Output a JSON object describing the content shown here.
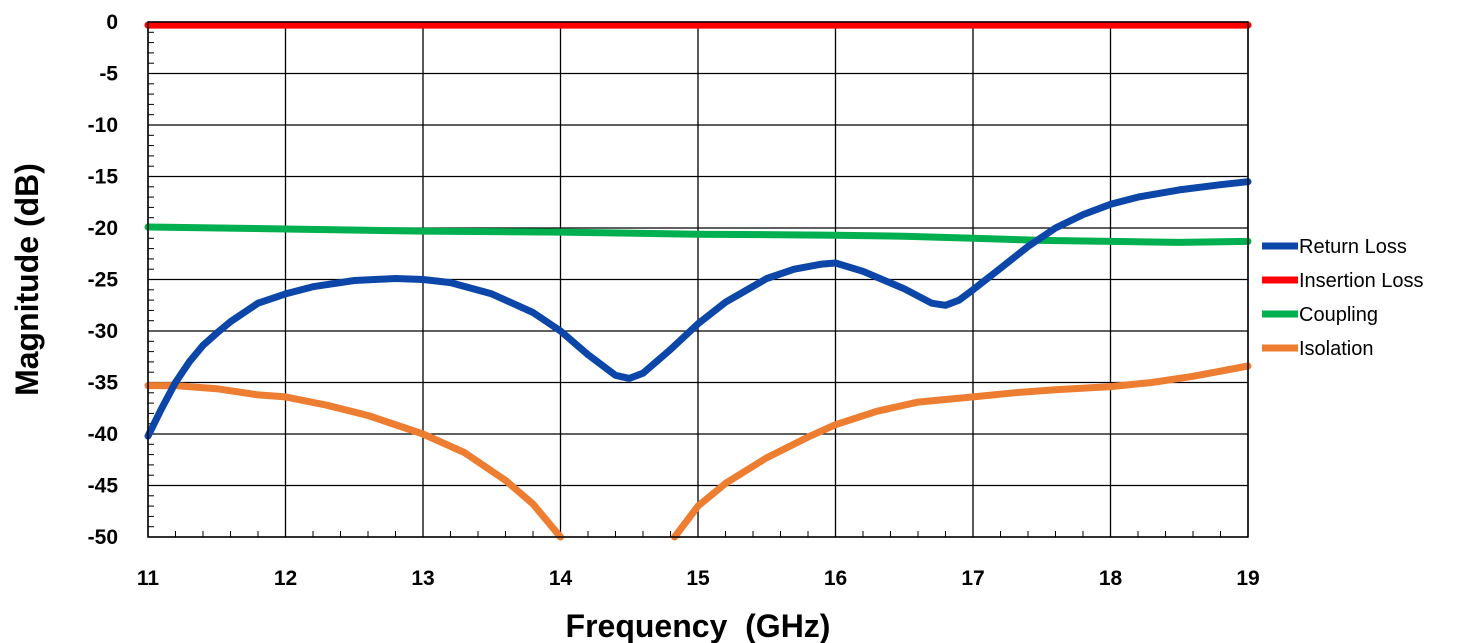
{
  "chart_data": {
    "type": "line",
    "title": "",
    "xlabel": "Frequency  (GHz)",
    "ylabel": "Magnitude (dB)",
    "xlim": [
      11,
      19
    ],
    "ylim": [
      -50,
      0
    ],
    "x_ticks": [
      11,
      12,
      13,
      14,
      15,
      16,
      17,
      18,
      19
    ],
    "y_ticks": [
      0,
      -5,
      -10,
      -15,
      -20,
      -25,
      -30,
      -35,
      -40,
      -45,
      -50
    ],
    "grid": true,
    "legend_position": "right",
    "series": [
      {
        "name": "Return Loss",
        "color": "#0b46a8",
        "x": [
          11,
          11.1,
          11.2,
          11.3,
          11.4,
          11.5,
          11.6,
          11.8,
          12,
          12.2,
          12.5,
          12.8,
          13,
          13.2,
          13.5,
          13.8,
          14,
          14.2,
          14.4,
          14.5,
          14.6,
          14.8,
          15,
          15.2,
          15.5,
          15.7,
          15.9,
          16,
          16.2,
          16.5,
          16.7,
          16.8,
          16.9,
          17,
          17.2,
          17.4,
          17.6,
          17.8,
          18,
          18.2,
          18.5,
          18.8,
          19
        ],
        "y": [
          -40.2,
          -37.5,
          -35,
          -33,
          -31.4,
          -30.2,
          -29.1,
          -27.3,
          -26.4,
          -25.7,
          -25.1,
          -24.9,
          -25.0,
          -25.3,
          -26.4,
          -28.2,
          -30.0,
          -32.3,
          -34.3,
          -34.6,
          -34.1,
          -31.8,
          -29.3,
          -27.2,
          -24.9,
          -24.0,
          -23.5,
          -23.4,
          -24.2,
          -25.9,
          -27.3,
          -27.5,
          -27.0,
          -26.0,
          -23.9,
          -21.8,
          -20.0,
          -18.7,
          -17.7,
          -17.0,
          -16.3,
          -15.8,
          -15.5
        ]
      },
      {
        "name": "Insertion Loss",
        "color": "#ff0000",
        "x": [
          11,
          19
        ],
        "y": [
          -0.3,
          -0.3
        ]
      },
      {
        "name": "Coupling",
        "color": "#00b050",
        "x": [
          11,
          12,
          13,
          14,
          15,
          16,
          16.5,
          17,
          17.5,
          18,
          18.5,
          19
        ],
        "y": [
          -19.9,
          -20.1,
          -20.3,
          -20.4,
          -20.6,
          -20.7,
          -20.8,
          -21.0,
          -21.2,
          -21.3,
          -21.4,
          -21.3
        ]
      },
      {
        "name": "Isolation",
        "color": "#ed7d31",
        "x": [
          11,
          11.2,
          11.5,
          11.8,
          12,
          12.3,
          12.6,
          13,
          13.3,
          13.6,
          13.8,
          14
        ],
        "y": [
          -35.3,
          -35.3,
          -35.6,
          -36.2,
          -36.4,
          -37.2,
          -38.2,
          -40.0,
          -41.8,
          -44.5,
          -46.8,
          -50.0
        ]
      },
      {
        "name": "Isolation",
        "color": "#ed7d31",
        "x": [
          14.83,
          15,
          15.2,
          15.5,
          15.8,
          16,
          16.3,
          16.6,
          17,
          17.3,
          17.6,
          18,
          18.3,
          18.6,
          19
        ],
        "y": [
          -50.0,
          -47.0,
          -44.8,
          -42.3,
          -40.3,
          -39.1,
          -37.8,
          -36.9,
          -36.4,
          -36.0,
          -35.7,
          -35.4,
          -35.0,
          -34.4,
          -33.4
        ]
      }
    ],
    "legend": [
      "Return Loss",
      "Insertion Loss",
      "Coupling",
      "Isolation"
    ]
  }
}
